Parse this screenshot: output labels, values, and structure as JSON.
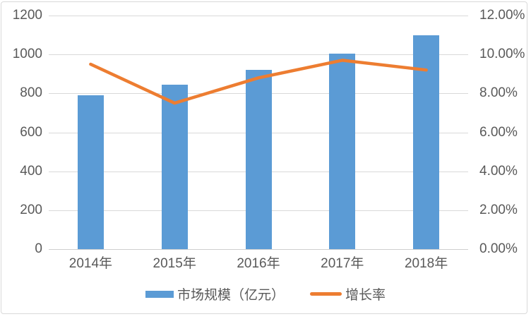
{
  "chart_data": {
    "type": "bar",
    "subtype": "bar-line-combo",
    "title": "",
    "categories": [
      "2014年",
      "2015年",
      "2016年",
      "2017年",
      "2018年"
    ],
    "series": [
      {
        "name": "市场规模（亿元）",
        "type": "bar",
        "axis": "left",
        "values": [
          790,
          845,
          920,
          1005,
          1100
        ],
        "color": "#5B9BD5"
      },
      {
        "name": "增长率",
        "type": "line",
        "axis": "right",
        "values": [
          9.5,
          7.5,
          8.8,
          9.7,
          9.2
        ],
        "unit": "%",
        "color": "#ED7D31"
      }
    ],
    "left_axis": {
      "min": 0,
      "max": 1200,
      "tick_step": 200,
      "tick_labels": [
        "1200",
        "1000",
        "800",
        "600",
        "400",
        "200",
        "0"
      ]
    },
    "right_axis": {
      "min": 0,
      "max": 12,
      "tick_step": 2,
      "tick_labels": [
        "12.00%",
        "10.00%",
        "8.00%",
        "6.00%",
        "4.00%",
        "2.00%",
        "0.00%"
      ]
    },
    "grid": true,
    "legend_position": "bottom"
  },
  "legend": {
    "bar_label": "市场规模（亿元）",
    "line_label": "增长率"
  },
  "colors": {
    "bar": "#5B9BD5",
    "line": "#ED7D31",
    "grid": "#D9D9D9",
    "axis_line": "#CFCFCF",
    "text": "#595959",
    "border": "#D9D9D9",
    "background": "#FFFFFF"
  }
}
